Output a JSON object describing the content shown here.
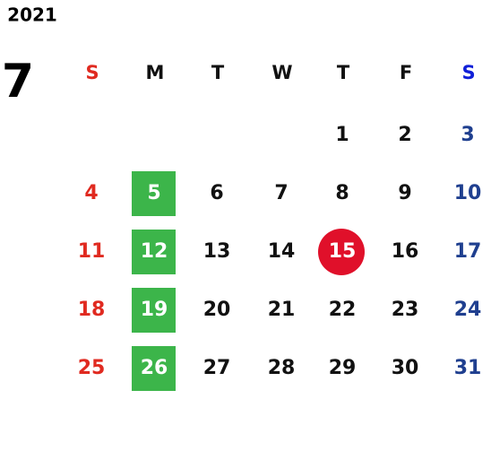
{
  "calendar": {
    "year": "2021",
    "month": "7",
    "weekdays": [
      "S",
      "M",
      "T",
      "W",
      "T",
      "F",
      "S"
    ],
    "weeks": [
      [
        null,
        null,
        null,
        null,
        1,
        2,
        3
      ],
      [
        4,
        5,
        6,
        7,
        8,
        9,
        10
      ],
      [
        11,
        12,
        13,
        14,
        15,
        16,
        17
      ],
      [
        18,
        19,
        20,
        21,
        22,
        23,
        24
      ],
      [
        25,
        26,
        27,
        28,
        29,
        30,
        31
      ]
    ],
    "today": 15,
    "today_color": "#e0102a",
    "monday_highlight_color": "#3cb54a",
    "sunday_color": "#e02a20",
    "saturday_color": "#1f3f8f",
    "saturday_header_color": "#1020d8",
    "weekday_color": "#111111"
  }
}
